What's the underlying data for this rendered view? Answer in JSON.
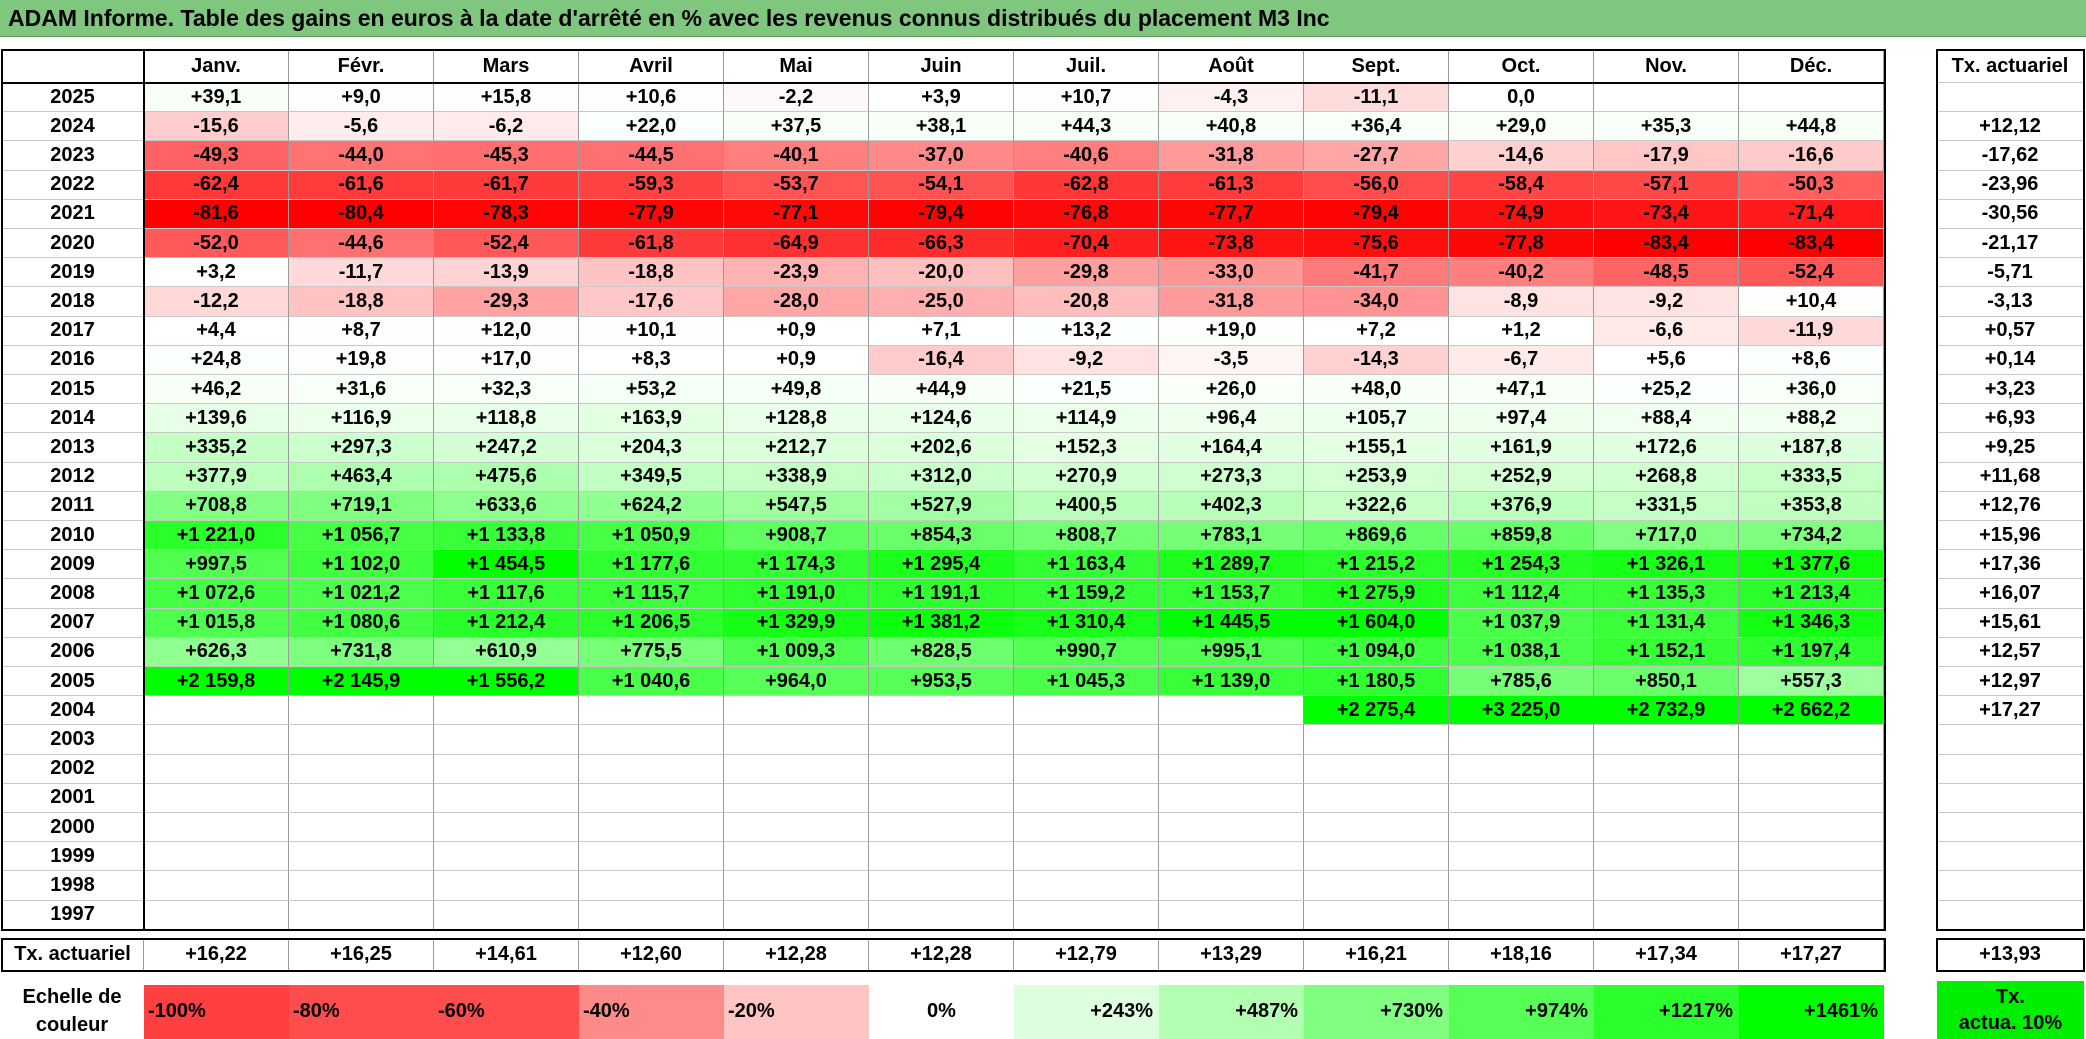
{
  "title": "ADAM Informe. Table des gains en euros à la date d'arrêté en % avec les revenus connus distribués du placement M3 Inc",
  "months": [
    "Janv.",
    "Févr.",
    "Mars",
    "Avril",
    "Mai",
    "Juin",
    "Juil.",
    "Août",
    "Sept.",
    "Oct.",
    "Nov.",
    "Déc."
  ],
  "rate_header": "Tx. actuariel",
  "rows": [
    {
      "year": "2025",
      "values": [
        "+39,1",
        "+9,0",
        "+15,8",
        "+10,6",
        "-2,2",
        "+3,9",
        "+10,7",
        "-4,3",
        "-11,1",
        "0,0",
        "",
        ""
      ],
      "rate": ""
    },
    {
      "year": "2024",
      "values": [
        "-15,6",
        "-5,6",
        "-6,2",
        "+22,0",
        "+37,5",
        "+38,1",
        "+44,3",
        "+40,8",
        "+36,4",
        "+29,0",
        "+35,3",
        "+44,8"
      ],
      "rate": "+12,12"
    },
    {
      "year": "2023",
      "values": [
        "-49,3",
        "-44,0",
        "-45,3",
        "-44,5",
        "-40,1",
        "-37,0",
        "-40,6",
        "-31,8",
        "-27,7",
        "-14,6",
        "-17,9",
        "-16,6"
      ],
      "rate": "-17,62"
    },
    {
      "year": "2022",
      "values": [
        "-62,4",
        "-61,6",
        "-61,7",
        "-59,3",
        "-53,7",
        "-54,1",
        "-62,8",
        "-61,3",
        "-56,0",
        "-58,4",
        "-57,1",
        "-50,3"
      ],
      "rate": "-23,96"
    },
    {
      "year": "2021",
      "values": [
        "-81,6",
        "-80,4",
        "-78,3",
        "-77,9",
        "-77,1",
        "-79,4",
        "-76,8",
        "-77,7",
        "-79,4",
        "-74,9",
        "-73,4",
        "-71,4"
      ],
      "rate": "-30,56"
    },
    {
      "year": "2020",
      "values": [
        "-52,0",
        "-44,6",
        "-52,4",
        "-61,8",
        "-64,9",
        "-66,3",
        "-70,4",
        "-73,8",
        "-75,6",
        "-77,8",
        "-83,4",
        "-83,4"
      ],
      "rate": "-21,17"
    },
    {
      "year": "2019",
      "values": [
        "+3,2",
        "-11,7",
        "-13,9",
        "-18,8",
        "-23,9",
        "-20,0",
        "-29,8",
        "-33,0",
        "-41,7",
        "-40,2",
        "-48,5",
        "-52,4"
      ],
      "rate": "-5,71"
    },
    {
      "year": "2018",
      "values": [
        "-12,2",
        "-18,8",
        "-29,3",
        "-17,6",
        "-28,0",
        "-25,0",
        "-20,8",
        "-31,8",
        "-34,0",
        "-8,9",
        "-9,2",
        "+10,4"
      ],
      "rate": "-3,13"
    },
    {
      "year": "2017",
      "values": [
        "+4,4",
        "+8,7",
        "+12,0",
        "+10,1",
        "+0,9",
        "+7,1",
        "+13,2",
        "+19,0",
        "+7,2",
        "+1,2",
        "-6,6",
        "-11,9"
      ],
      "rate": "+0,57"
    },
    {
      "year": "2016",
      "values": [
        "+24,8",
        "+19,8",
        "+17,0",
        "+8,3",
        "+0,9",
        "-16,4",
        "-9,2",
        "-3,5",
        "-14,3",
        "-6,7",
        "+5,6",
        "+8,6"
      ],
      "rate": "+0,14"
    },
    {
      "year": "2015",
      "values": [
        "+46,2",
        "+31,6",
        "+32,3",
        "+53,2",
        "+49,8",
        "+44,9",
        "+21,5",
        "+26,0",
        "+48,0",
        "+47,1",
        "+25,2",
        "+36,0"
      ],
      "rate": "+3,23"
    },
    {
      "year": "2014",
      "values": [
        "+139,6",
        "+116,9",
        "+118,8",
        "+163,9",
        "+128,8",
        "+124,6",
        "+114,9",
        "+96,4",
        "+105,7",
        "+97,4",
        "+88,4",
        "+88,2"
      ],
      "rate": "+6,93"
    },
    {
      "year": "2013",
      "values": [
        "+335,2",
        "+297,3",
        "+247,2",
        "+204,3",
        "+212,7",
        "+202,6",
        "+152,3",
        "+164,4",
        "+155,1",
        "+161,9",
        "+172,6",
        "+187,8"
      ],
      "rate": "+9,25"
    },
    {
      "year": "2012",
      "values": [
        "+377,9",
        "+463,4",
        "+475,6",
        "+349,5",
        "+338,9",
        "+312,0",
        "+270,9",
        "+273,3",
        "+253,9",
        "+252,9",
        "+268,8",
        "+333,5"
      ],
      "rate": "+11,68"
    },
    {
      "year": "2011",
      "values": [
        "+708,8",
        "+719,1",
        "+633,6",
        "+624,2",
        "+547,5",
        "+527,9",
        "+400,5",
        "+402,3",
        "+322,6",
        "+376,9",
        "+331,5",
        "+353,8"
      ],
      "rate": "+12,76"
    },
    {
      "year": "2010",
      "values": [
        "+1 221,0",
        "+1 056,7",
        "+1 133,8",
        "+1 050,9",
        "+908,7",
        "+854,3",
        "+808,7",
        "+783,1",
        "+869,6",
        "+859,8",
        "+717,0",
        "+734,2"
      ],
      "rate": "+15,96"
    },
    {
      "year": "2009",
      "values": [
        "+997,5",
        "+1 102,0",
        "+1 454,5",
        "+1 177,6",
        "+1 174,3",
        "+1 295,4",
        "+1 163,4",
        "+1 289,7",
        "+1 215,2",
        "+1 254,3",
        "+1 326,1",
        "+1 377,6"
      ],
      "rate": "+17,36"
    },
    {
      "year": "2008",
      "values": [
        "+1 072,6",
        "+1 021,2",
        "+1 117,6",
        "+1 115,7",
        "+1 191,0",
        "+1 191,1",
        "+1 159,2",
        "+1 153,7",
        "+1 275,9",
        "+1 112,4",
        "+1 135,3",
        "+1 213,4"
      ],
      "rate": "+16,07"
    },
    {
      "year": "2007",
      "values": [
        "+1 015,8",
        "+1 080,6",
        "+1 212,4",
        "+1 206,5",
        "+1 329,9",
        "+1 381,2",
        "+1 310,4",
        "+1 445,5",
        "+1 604,0",
        "+1 037,9",
        "+1 131,4",
        "+1 346,3"
      ],
      "rate": "+15,61"
    },
    {
      "year": "2006",
      "values": [
        "+626,3",
        "+731,8",
        "+610,9",
        "+775,5",
        "+1 009,3",
        "+828,5",
        "+990,7",
        "+995,1",
        "+1 094,0",
        "+1 038,1",
        "+1 152,1",
        "+1 197,4"
      ],
      "rate": "+12,57"
    },
    {
      "year": "2005",
      "values": [
        "+2 159,8",
        "+2 145,9",
        "+1 556,2",
        "+1 040,6",
        "+964,0",
        "+953,5",
        "+1 045,3",
        "+1 139,0",
        "+1 180,5",
        "+785,6",
        "+850,1",
        "+557,3"
      ],
      "rate": "+12,97"
    },
    {
      "year": "2004",
      "values": [
        "",
        "",
        "",
        "",
        "",
        "",
        "",
        "",
        "+2 275,4",
        "+3 225,0",
        "+2 732,9",
        "+2 662,2"
      ],
      "rate": "+17,27"
    },
    {
      "year": "2003",
      "values": [
        "",
        "",
        "",
        "",
        "",
        "",
        "",
        "",
        "",
        "",
        "",
        ""
      ],
      "rate": ""
    },
    {
      "year": "2002",
      "values": [
        "",
        "",
        "",
        "",
        "",
        "",
        "",
        "",
        "",
        "",
        "",
        ""
      ],
      "rate": ""
    },
    {
      "year": "2001",
      "values": [
        "",
        "",
        "",
        "",
        "",
        "",
        "",
        "",
        "",
        "",
        "",
        ""
      ],
      "rate": ""
    },
    {
      "year": "2000",
      "values": [
        "",
        "",
        "",
        "",
        "",
        "",
        "",
        "",
        "",
        "",
        "",
        ""
      ],
      "rate": ""
    },
    {
      "year": "1999",
      "values": [
        "",
        "",
        "",
        "",
        "",
        "",
        "",
        "",
        "",
        "",
        "",
        ""
      ],
      "rate": ""
    },
    {
      "year": "1998",
      "values": [
        "",
        "",
        "",
        "",
        "",
        "",
        "",
        "",
        "",
        "",
        "",
        ""
      ],
      "rate": ""
    },
    {
      "year": "1997",
      "values": [
        "",
        "",
        "",
        "",
        "",
        "",
        "",
        "",
        "",
        "",
        "",
        ""
      ],
      "rate": ""
    }
  ],
  "footer": {
    "label": "Tx. actuariel",
    "values": [
      "+16,22",
      "+16,25",
      "+14,61",
      "+12,60",
      "+12,28",
      "+12,28",
      "+12,79",
      "+13,29",
      "+16,21",
      "+18,16",
      "+17,34",
      "+17,27"
    ],
    "total": "+13,93"
  },
  "scale": {
    "label_line1": "Echelle de",
    "label_line2": "couleur",
    "items": [
      {
        "label": "-100%",
        "color": "#ff4040"
      },
      {
        "label": "-80%",
        "color": "#ff4d4d"
      },
      {
        "label": "-60%",
        "color": "#ff4d4d"
      },
      {
        "label": "-40%",
        "color": "#ff8a8a"
      },
      {
        "label": "-20%",
        "color": "#ffc4c4"
      },
      {
        "label": "0%",
        "color": "#ffffff"
      },
      {
        "label": "+243%",
        "color": "#ddffdd"
      },
      {
        "label": "+487%",
        "color": "#b2ffb2"
      },
      {
        "label": "+730%",
        "color": "#80ff80"
      },
      {
        "label": "+974%",
        "color": "#55ff55"
      },
      {
        "label": "+1217%",
        "color": "#2bff2b"
      },
      {
        "label": "+1461%",
        "color": "#00ff00"
      }
    ],
    "target_line1": "Tx.",
    "target_line2": "actua. 10%",
    "target_color": "#00ee00"
  }
}
